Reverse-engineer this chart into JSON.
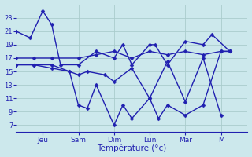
{
  "background_color": "#cce8ec",
  "grid_color": "#aacccc",
  "line_color": "#2020b0",
  "xlabel": "Température (°c)",
  "ylim": [
    6,
    25
  ],
  "yticks": [
    7,
    9,
    11,
    13,
    15,
    17,
    19,
    21,
    23
  ],
  "xlim": [
    0,
    13
  ],
  "day_ticks": [
    1.5,
    3.5,
    5.5,
    7.5,
    9.5,
    11.5
  ],
  "day_labels": [
    "Jeu",
    "Sam",
    "Dim",
    "Lun",
    "Mar",
    "M"
  ],
  "s1": {
    "x": [
      0,
      0.8,
      1.5,
      2.0,
      2.5,
      3.5,
      4.5,
      5.5,
      6.0,
      6.5,
      7.5,
      7.8,
      8.5,
      9.5,
      10.5,
      11.0,
      12.0
    ],
    "y": [
      21,
      20,
      24,
      22,
      16,
      16,
      18,
      17,
      19,
      16,
      19,
      19,
      16,
      19.5,
      19,
      20.5,
      18
    ]
  },
  "s2": {
    "x": [
      0,
      1.0,
      2.0,
      3.0,
      3.5,
      4.0,
      4.5,
      5.5,
      6.0,
      6.5,
      7.5,
      8.0,
      8.5,
      9.5,
      10.5,
      11.5,
      12.0
    ],
    "y": [
      16,
      16,
      16,
      15,
      10,
      9.5,
      13,
      7,
      10,
      8,
      11,
      8,
      10,
      8.5,
      10,
      18,
      18
    ]
  },
  "s3": {
    "x": [
      0,
      1.0,
      2.0,
      3.5,
      4.5,
      5.5,
      6.5,
      7.5,
      8.5,
      9.5,
      10.5,
      11.5,
      12.0
    ],
    "y": [
      17,
      17,
      17,
      17,
      17.5,
      18,
      17,
      18,
      17.5,
      18,
      17.5,
      18,
      18
    ]
  },
  "s4": {
    "x": [
      0,
      1.0,
      2.0,
      3.0,
      3.5,
      4.0,
      5.0,
      5.5,
      6.5,
      7.5,
      8.5,
      9.5,
      10.5,
      11.5
    ],
    "y": [
      16,
      16,
      15.5,
      15,
      14.5,
      15,
      14.5,
      13.5,
      15.5,
      11,
      16.5,
      10.5,
      17,
      8.5
    ]
  }
}
